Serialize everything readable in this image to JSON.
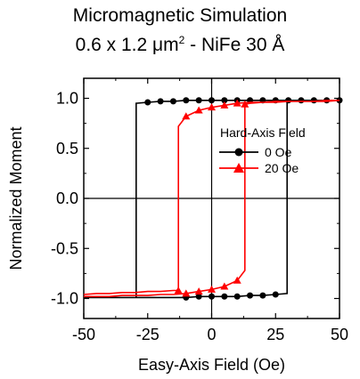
{
  "chart_data": {
    "type": "line",
    "title_line1": "Micromagnetic Simulation",
    "title_line2_prefix": "0.6 x 1.2 ",
    "title_line2_unit": "μm",
    "title_line2_sup": "2",
    "title_line2_suffix": " - NiFe 30 Å",
    "xlabel": "Easy-Axis Field (Oe)",
    "ylabel": "Normalized Moment",
    "xlim": [
      -50,
      50
    ],
    "ylim": [
      -1.2,
      1.2
    ],
    "xticks": [
      -50,
      -25,
      0,
      25,
      50
    ],
    "xtick_labels": [
      "-50",
      "-25",
      "0",
      "25",
      "50"
    ],
    "yticks": [
      -1.0,
      -0.5,
      0.0,
      0.5,
      1.0
    ],
    "ytick_labels": [
      "-1.0",
      "-0.5",
      "0.0",
      "0.5",
      "1.0"
    ],
    "zero_lines": true,
    "legend_title": "Hard-Axis Field",
    "legend_position": "right",
    "series": [
      {
        "name": "0 Oe",
        "color": "#000000",
        "marker": "circle",
        "x": [
          -50,
          -45,
          -40,
          -35,
          -30,
          -29.5,
          -29.5,
          -25,
          -20,
          -15,
          -10,
          -5,
          0,
          5,
          10,
          15,
          20,
          25,
          30,
          35,
          40,
          45,
          50,
          50,
          45,
          40,
          35,
          30,
          29.5,
          29.5,
          25,
          20,
          15,
          10,
          5,
          0,
          -5,
          -10,
          -15,
          -20,
          -25,
          -30,
          -35,
          -40,
          -45,
          -50
        ],
        "y": [
          -0.99,
          -0.99,
          -0.99,
          -0.99,
          -0.99,
          -0.99,
          0.95,
          0.96,
          0.97,
          0.97,
          0.98,
          0.98,
          0.98,
          0.98,
          0.98,
          0.98,
          0.98,
          0.98,
          0.98,
          0.98,
          0.98,
          0.98,
          0.98,
          0.98,
          0.98,
          0.98,
          0.98,
          0.98,
          0.98,
          -0.95,
          -0.96,
          -0.97,
          -0.97,
          -0.98,
          -0.98,
          -0.98,
          -0.98,
          -0.99,
          -0.99,
          -0.99,
          -0.99,
          -0.99,
          -0.99,
          -0.99,
          -0.99,
          -0.99
        ],
        "marker_x": [
          -25,
          -20,
          -15,
          -10,
          -5,
          0,
          5,
          10,
          15,
          20,
          25,
          30,
          35,
          40,
          45,
          50,
          25,
          20,
          15,
          10,
          5,
          0,
          -5,
          -10
        ]
      },
      {
        "name": "20 Oe",
        "color": "#ff0000",
        "marker": "triangle",
        "x": [
          -50,
          -45,
          -40,
          -35,
          -30,
          -25,
          -20,
          -15,
          -13,
          -13,
          -10,
          -5,
          0,
          5,
          10,
          15,
          20,
          25,
          30,
          35,
          40,
          45,
          50,
          50,
          45,
          40,
          35,
          30,
          25,
          20,
          15,
          13,
          13,
          10,
          5,
          0,
          -5,
          -10,
          -15,
          -20,
          -25,
          -30,
          -35,
          -40,
          -45,
          -50
        ],
        "y": [
          -0.96,
          -0.95,
          -0.95,
          -0.94,
          -0.94,
          -0.93,
          -0.93,
          -0.92,
          -0.92,
          0.72,
          0.82,
          0.88,
          0.91,
          0.93,
          0.95,
          0.96,
          0.96,
          0.97,
          0.97,
          0.97,
          0.97,
          0.98,
          0.98,
          0.98,
          0.97,
          0.97,
          0.97,
          0.97,
          0.96,
          0.96,
          0.95,
          0.94,
          -0.72,
          -0.82,
          -0.88,
          -0.91,
          -0.93,
          -0.95,
          -0.96,
          -0.96,
          -0.97,
          -0.97,
          -0.97,
          -0.98,
          -0.98,
          -0.98
        ],
        "marker_x": [
          -13,
          -10,
          -5,
          0,
          5,
          10,
          13,
          10,
          5,
          0,
          -5,
          -10
        ]
      }
    ]
  }
}
